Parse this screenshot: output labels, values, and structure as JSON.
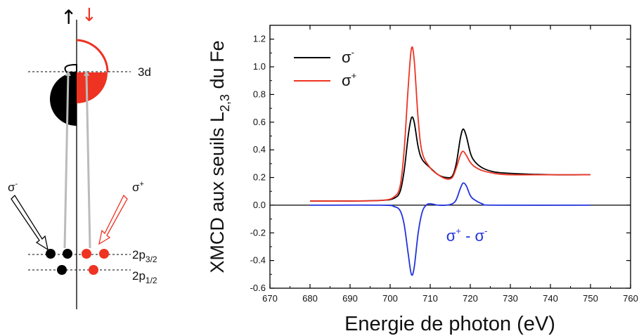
{
  "diagram": {
    "spin_up_glyph": "↑",
    "spin_down_glyph": "↓",
    "level_3d": "3d",
    "level_2p32_main": "2p",
    "level_2p32_sub": "3/2",
    "level_2p12_main": "2p",
    "level_2p12_sub": "1/2",
    "sigma_minus": {
      "base": "σ",
      "sup": "-"
    },
    "sigma_plus": {
      "base": "σ",
      "sup": "+"
    },
    "colors": {
      "up": "#000000",
      "down": "#ee3322",
      "arrow": "#bbbbbb"
    }
  },
  "chart_data": {
    "type": "line",
    "xlabel": "Energie de photon (eV)",
    "ylabel": {
      "base": "XMCD aux seuils L",
      "sub": "2,3",
      "tail": " du Fe"
    },
    "xlim": [
      670,
      760
    ],
    "ylim": [
      -0.6,
      1.3
    ],
    "xticks": [
      670,
      680,
      690,
      700,
      710,
      720,
      730,
      740,
      750,
      760
    ],
    "yticks": [
      -0.6,
      -0.4,
      -0.2,
      0.0,
      0.2,
      0.4,
      0.6,
      0.8,
      1.0,
      1.2
    ],
    "ytick_labels": [
      "-0.6",
      "-0.4",
      "-0.2",
      "0.0",
      "0.2",
      "0.4",
      "0.6",
      "0.8",
      "1.0",
      "1.2"
    ],
    "xtick_labels": [
      "670",
      "680",
      "690",
      "700",
      "710",
      "720",
      "730",
      "740",
      "750",
      "760"
    ],
    "zero_line": true,
    "grid": false,
    "legend_position": "top-left",
    "series": [
      {
        "name": {
          "base": "σ",
          "sup": "-"
        },
        "color": "#000000",
        "points": [
          [
            680,
            0.03
          ],
          [
            690,
            0.03
          ],
          [
            698,
            0.035
          ],
          [
            701,
            0.05
          ],
          [
            702.5,
            0.1
          ],
          [
            703.5,
            0.25
          ],
          [
            704.5,
            0.5
          ],
          [
            705.3,
            0.63
          ],
          [
            706,
            0.6
          ],
          [
            707,
            0.42
          ],
          [
            708,
            0.33
          ],
          [
            710,
            0.27
          ],
          [
            712,
            0.22
          ],
          [
            714,
            0.2
          ],
          [
            715.5,
            0.21
          ],
          [
            716.5,
            0.3
          ],
          [
            717.5,
            0.48
          ],
          [
            718.2,
            0.55
          ],
          [
            719,
            0.5
          ],
          [
            720,
            0.38
          ],
          [
            721,
            0.32
          ],
          [
            723,
            0.27
          ],
          [
            726,
            0.24
          ],
          [
            730,
            0.23
          ],
          [
            740,
            0.22
          ],
          [
            750,
            0.22
          ]
        ]
      },
      {
        "name": {
          "base": "σ",
          "sup": "+"
        },
        "color": "#ee3322",
        "points": [
          [
            680,
            0.03
          ],
          [
            690,
            0.03
          ],
          [
            698,
            0.035
          ],
          [
            701,
            0.06
          ],
          [
            702.5,
            0.14
          ],
          [
            703.5,
            0.4
          ],
          [
            704.5,
            0.85
          ],
          [
            705.3,
            1.13
          ],
          [
            706,
            1.05
          ],
          [
            707,
            0.62
          ],
          [
            708,
            0.38
          ],
          [
            710,
            0.27
          ],
          [
            712,
            0.22
          ],
          [
            714,
            0.19
          ],
          [
            715.5,
            0.2
          ],
          [
            716.5,
            0.27
          ],
          [
            717.5,
            0.36
          ],
          [
            718.2,
            0.39
          ],
          [
            719,
            0.36
          ],
          [
            720,
            0.31
          ],
          [
            721,
            0.28
          ],
          [
            723,
            0.25
          ],
          [
            726,
            0.23
          ],
          [
            730,
            0.22
          ],
          [
            740,
            0.22
          ],
          [
            750,
            0.22
          ]
        ]
      },
      {
        "name": "",
        "color": "#2233dd",
        "points": [
          [
            680,
            0.0
          ],
          [
            698,
            0.0
          ],
          [
            701,
            -0.01
          ],
          [
            702.5,
            -0.04
          ],
          [
            703.5,
            -0.14
          ],
          [
            704.5,
            -0.35
          ],
          [
            705.3,
            -0.5
          ],
          [
            706,
            -0.45
          ],
          [
            707,
            -0.2
          ],
          [
            708,
            -0.05
          ],
          [
            709,
            0.0
          ],
          [
            710,
            0.01
          ],
          [
            712,
            0.0
          ],
          [
            714,
            0.0
          ],
          [
            715.5,
            0.01
          ],
          [
            716.5,
            0.04
          ],
          [
            717.5,
            0.12
          ],
          [
            718.2,
            0.16
          ],
          [
            719,
            0.14
          ],
          [
            720,
            0.07
          ],
          [
            721,
            0.04
          ],
          [
            723,
            0.01
          ],
          [
            726,
            0.0
          ],
          [
            750,
            0.0
          ]
        ]
      }
    ],
    "annotation": {
      "text_a": "σ",
      "sup_a": "+",
      "mid": " - ",
      "text_b": "σ",
      "sup_b": "-",
      "x": 714,
      "y": -0.26,
      "color": "#2233dd"
    }
  }
}
